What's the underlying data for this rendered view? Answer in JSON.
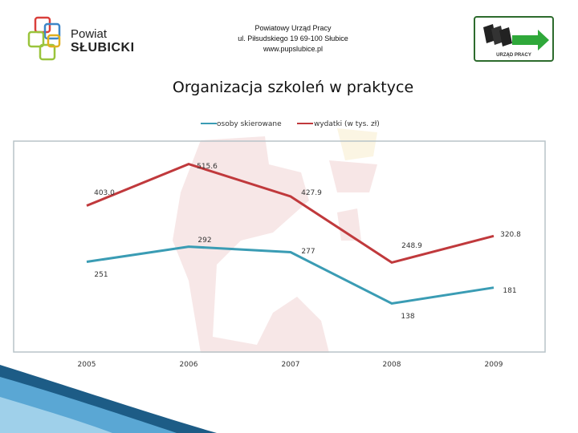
{
  "header": {
    "brand_line1": "Powiat",
    "brand_line2": "SŁUBICKI",
    "office_name": "Powiatowy Urząd Pracy",
    "office_address": "ul. Piłsudskiego 19 69-100 Słubice",
    "office_www": "www.pupslubice.pl",
    "logo_right_label": "URZĄD PRACY"
  },
  "colors": {
    "series1": "#3a9cb4",
    "series2": "#c0393c",
    "logo_green": "#2d6b2d",
    "arrow_green": "#2fa83a"
  },
  "chart_data": {
    "type": "line",
    "title": "Organizacja szkoleń w praktyce",
    "categories": [
      "2005",
      "2006",
      "2007",
      "2008",
      "2009"
    ],
    "series": [
      {
        "name": "osoby skierowane",
        "values": [
          251,
          292,
          277,
          138,
          181
        ],
        "labels": [
          "251",
          "292",
          "277",
          "138",
          "181"
        ]
      },
      {
        "name": "wydatki (w tys. zł)",
        "values": [
          403.0,
          515.6,
          427.9,
          248.9,
          320.8
        ],
        "labels": [
          "403.0",
          "515.6",
          "427.9",
          "248.9",
          "320.8"
        ]
      }
    ],
    "legend": "top",
    "grid": false
  }
}
